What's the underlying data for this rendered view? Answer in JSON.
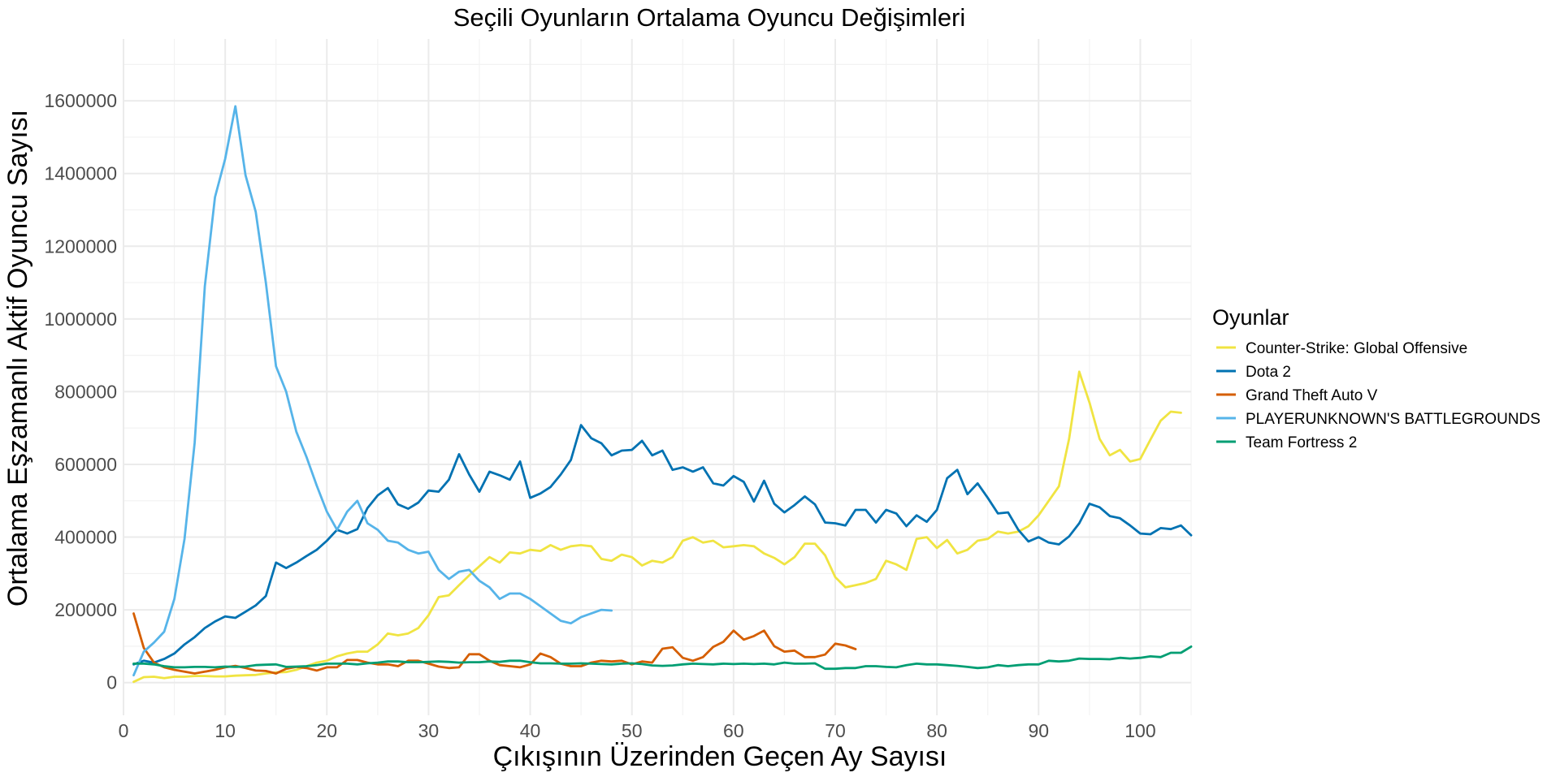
{
  "chart_data": {
    "type": "line",
    "title": "Seçili Oyunların Ortalama Oyuncu Değişimleri",
    "xlabel": "Çıkışının Üzerinden Geçen Ay Sayısı",
    "ylabel": "Ortalama Eşzamanlı Aktif Oyuncu Sayısı",
    "xlim": [
      0,
      105
    ],
    "ylim": [
      -90000,
      1770000
    ],
    "x_ticks": [
      0,
      10,
      20,
      30,
      40,
      50,
      60,
      70,
      80,
      90,
      100
    ],
    "y_ticks": [
      0,
      200000,
      400000,
      600000,
      800000,
      1000000,
      1200000,
      1400000,
      1600000
    ],
    "x_tick_labels": [
      "0",
      "10",
      "20",
      "30",
      "40",
      "50",
      "60",
      "70",
      "80",
      "90",
      "100"
    ],
    "y_tick_labels": [
      "0",
      "200000",
      "400000",
      "600000",
      "800000",
      "1000000",
      "1200000",
      "1400000",
      "1600000"
    ],
    "grid": true,
    "legend": {
      "title": "Oyunlar",
      "position": "right"
    },
    "series": [
      {
        "name": "Counter-Strike: Global Offensive",
        "color": "#F0E442",
        "x_start": 1,
        "values": [
          2000,
          15000,
          16000,
          12000,
          16000,
          16000,
          18000,
          18000,
          17000,
          17000,
          19000,
          20000,
          21000,
          25000,
          28000,
          29000,
          35000,
          45000,
          55000,
          60000,
          72000,
          80000,
          85000,
          85000,
          105000,
          135000,
          130000,
          135000,
          150000,
          185000,
          235000,
          240000,
          268000,
          295000,
          320000,
          345000,
          330000,
          358000,
          355000,
          365000,
          362000,
          378000,
          365000,
          375000,
          378000,
          375000,
          340000,
          335000,
          352000,
          345000,
          322000,
          335000,
          330000,
          345000,
          390000,
          400000,
          385000,
          390000,
          372000,
          375000,
          378000,
          375000,
          355000,
          343000,
          325000,
          345000,
          382000,
          382000,
          350000,
          290000,
          262000,
          268000,
          274000,
          285000,
          335000,
          325000,
          310000,
          395000,
          400000,
          370000,
          392000,
          355000,
          365000,
          390000,
          395000,
          415000,
          410000,
          415000,
          430000,
          460000,
          500000,
          540000,
          670000,
          855000,
          770000,
          670000,
          625000,
          640000,
          608000,
          615000,
          668000,
          720000,
          745000,
          742000
        ]
      },
      {
        "name": "Dota 2",
        "color": "#0072B2",
        "x_start": 1,
        "values": [
          50000,
          60000,
          55000,
          65000,
          80000,
          105000,
          125000,
          150000,
          168000,
          182000,
          178000,
          195000,
          212000,
          238000,
          330000,
          315000,
          330000,
          348000,
          365000,
          390000,
          420000,
          410000,
          422000,
          480000,
          515000,
          535000,
          490000,
          478000,
          495000,
          528000,
          525000,
          558000,
          628000,
          572000,
          525000,
          580000,
          570000,
          558000,
          608000,
          508000,
          520000,
          538000,
          572000,
          612000,
          708000,
          672000,
          658000,
          625000,
          638000,
          640000,
          665000,
          625000,
          638000,
          585000,
          592000,
          580000,
          592000,
          548000,
          542000,
          568000,
          552000,
          498000,
          555000,
          492000,
          468000,
          488000,
          512000,
          490000,
          440000,
          438000,
          432000,
          475000,
          475000,
          440000,
          475000,
          465000,
          430000,
          460000,
          442000,
          475000,
          562000,
          585000,
          518000,
          548000,
          508000,
          465000,
          468000,
          420000,
          388000,
          400000,
          385000,
          380000,
          402000,
          438000,
          492000,
          482000,
          458000,
          452000,
          432000,
          410000,
          408000,
          425000,
          422000,
          432000,
          405000
        ]
      },
      {
        "name": "Grand Theft Auto V",
        "color": "#D55E00",
        "x_start": 1,
        "values": [
          190000,
          95000,
          55000,
          42000,
          35000,
          30000,
          25000,
          30000,
          35000,
          42000,
          46000,
          40000,
          33000,
          32000,
          25000,
          38000,
          43000,
          40000,
          33000,
          42000,
          42000,
          62000,
          62000,
          55000,
          50000,
          50000,
          45000,
          60000,
          60000,
          52000,
          44000,
          40000,
          42000,
          78000,
          78000,
          60000,
          48000,
          45000,
          42000,
          50000,
          80000,
          70000,
          52000,
          45000,
          45000,
          55000,
          60000,
          58000,
          60000,
          50000,
          58000,
          55000,
          93000,
          97000,
          68000,
          60000,
          70000,
          98000,
          112000,
          143000,
          118000,
          128000,
          143000,
          100000,
          85000,
          88000,
          70000,
          70000,
          77000,
          107000,
          102000,
          92000
        ]
      },
      {
        "name": "PLAYERUNKNOWN'S BATTLEGROUNDS",
        "color": "#56B4E9",
        "x_start": 1,
        "values": [
          20000,
          85000,
          110000,
          140000,
          230000,
          395000,
          660000,
          1090000,
          1335000,
          1440000,
          1585000,
          1395000,
          1295000,
          1100000,
          870000,
          800000,
          690000,
          620000,
          542000,
          470000,
          420000,
          470000,
          500000,
          438000,
          420000,
          390000,
          385000,
          365000,
          355000,
          360000,
          310000,
          285000,
          305000,
          310000,
          280000,
          262000,
          230000,
          245000,
          245000,
          230000,
          210000,
          190000,
          170000,
          163000,
          180000,
          190000,
          200000,
          198000
        ]
      },
      {
        "name": "Team Fortress 2",
        "color": "#009E73",
        "x_start": 1,
        "values": [
          52000,
          52000,
          50000,
          45000,
          42000,
          42000,
          43000,
          43000,
          42000,
          44000,
          43000,
          44000,
          48000,
          49000,
          50000,
          43000,
          44000,
          45000,
          48000,
          52000,
          52000,
          52000,
          50000,
          53000,
          55000,
          58000,
          58000,
          56000,
          56000,
          57000,
          58000,
          57000,
          55000,
          56000,
          56000,
          58000,
          57000,
          60000,
          60000,
          56000,
          53000,
          53000,
          52000,
          52000,
          53000,
          52000,
          51000,
          50000,
          52000,
          53000,
          51000,
          47000,
          46000,
          47000,
          50000,
          52000,
          51000,
          50000,
          52000,
          51000,
          52000,
          51000,
          52000,
          50000,
          55000,
          52000,
          52000,
          53000,
          38000,
          38000,
          40000,
          40000,
          45000,
          45000,
          43000,
          42000,
          48000,
          52000,
          50000,
          50000,
          48000,
          46000,
          43000,
          40000,
          42000,
          48000,
          45000,
          48000,
          50000,
          50000,
          60000,
          58000,
          60000,
          66000,
          65000,
          65000,
          64000,
          68000,
          66000,
          68000,
          72000,
          70000,
          82000,
          82000,
          99000
        ]
      }
    ]
  }
}
